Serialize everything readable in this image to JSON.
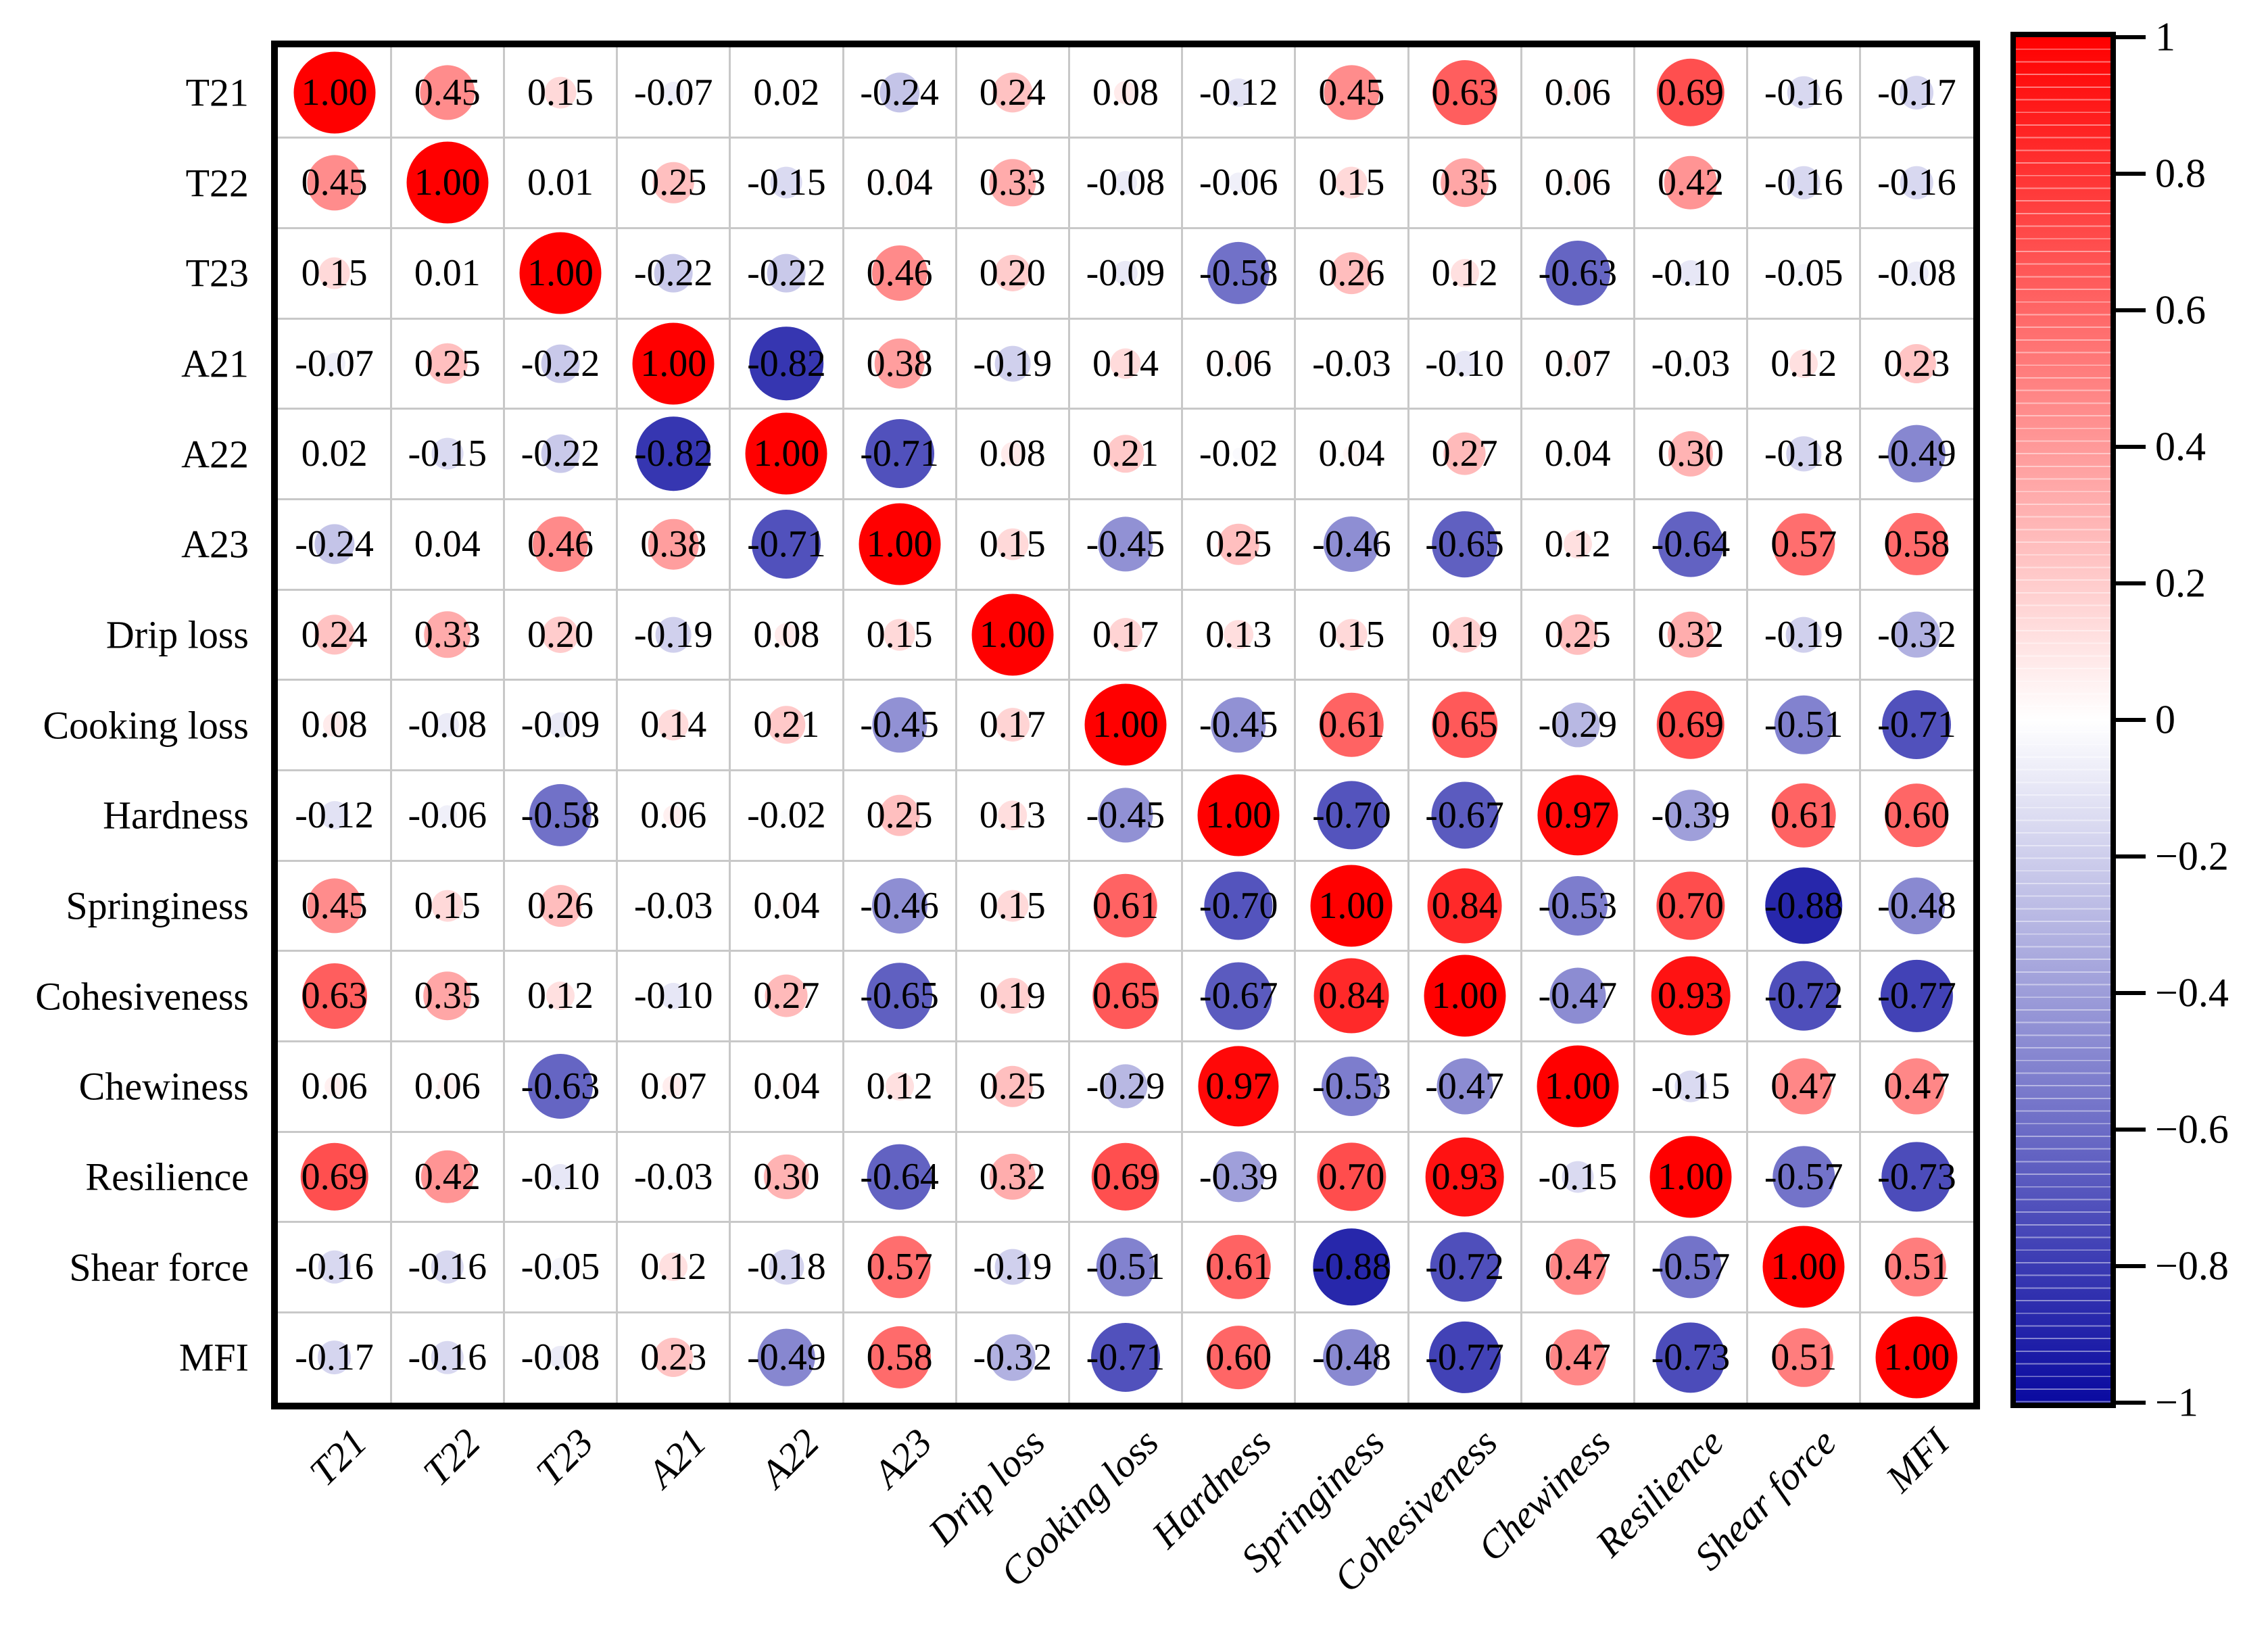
{
  "chart_data": {
    "type": "heatmap",
    "subtype": "correlation-bubble-matrix",
    "title": "",
    "variables": [
      "T21",
      "T22",
      "T23",
      "A21",
      "A22",
      "A23",
      "Drip loss",
      "Cooking loss",
      "Hardness",
      "Springiness",
      "Cohesiveness",
      "Chewiness",
      "Resilience",
      "Shear force",
      "MFI"
    ],
    "matrix": [
      [
        1.0,
        0.45,
        0.15,
        -0.07,
        0.02,
        -0.24,
        0.24,
        0.08,
        -0.12,
        0.45,
        0.63,
        0.06,
        0.69,
        -0.16,
        -0.17
      ],
      [
        0.45,
        1.0,
        0.01,
        0.25,
        -0.15,
        0.04,
        0.33,
        -0.08,
        -0.06,
        0.15,
        0.35,
        0.06,
        0.42,
        -0.16,
        -0.16
      ],
      [
        0.15,
        0.01,
        1.0,
        -0.22,
        -0.22,
        0.46,
        0.2,
        -0.09,
        -0.58,
        0.26,
        0.12,
        -0.63,
        -0.1,
        -0.05,
        -0.08
      ],
      [
        -0.07,
        0.25,
        -0.22,
        1.0,
        -0.82,
        0.38,
        -0.19,
        0.14,
        0.06,
        -0.03,
        -0.1,
        0.07,
        -0.03,
        0.12,
        0.23
      ],
      [
        0.02,
        -0.15,
        -0.22,
        -0.82,
        1.0,
        -0.71,
        0.08,
        0.21,
        -0.02,
        0.04,
        0.27,
        0.04,
        0.3,
        -0.18,
        -0.49
      ],
      [
        -0.24,
        0.04,
        0.46,
        0.38,
        -0.71,
        1.0,
        0.15,
        -0.45,
        0.25,
        -0.46,
        -0.65,
        0.12,
        -0.64,
        0.57,
        0.58
      ],
      [
        0.24,
        0.33,
        0.2,
        -0.19,
        0.08,
        0.15,
        1.0,
        0.17,
        0.13,
        0.15,
        0.19,
        0.25,
        0.32,
        -0.19,
        -0.32
      ],
      [
        0.08,
        -0.08,
        -0.09,
        0.14,
        0.21,
        -0.45,
        0.17,
        1.0,
        -0.45,
        0.61,
        0.65,
        -0.29,
        0.69,
        -0.51,
        -0.71
      ],
      [
        -0.12,
        -0.06,
        -0.58,
        0.06,
        -0.02,
        0.25,
        0.13,
        -0.45,
        1.0,
        -0.7,
        -0.67,
        0.97,
        -0.39,
        0.61,
        0.6
      ],
      [
        0.45,
        0.15,
        0.26,
        -0.03,
        0.04,
        -0.46,
        0.15,
        0.61,
        -0.7,
        1.0,
        0.84,
        -0.53,
        0.7,
        -0.88,
        -0.48
      ],
      [
        0.63,
        0.35,
        0.12,
        -0.1,
        0.27,
        -0.65,
        0.19,
        0.65,
        -0.67,
        0.84,
        1.0,
        -0.47,
        0.93,
        -0.72,
        -0.77
      ],
      [
        0.06,
        0.06,
        -0.63,
        0.07,
        0.04,
        0.12,
        0.25,
        -0.29,
        0.97,
        -0.53,
        -0.47,
        1.0,
        -0.15,
        0.47,
        0.47
      ],
      [
        0.69,
        0.42,
        -0.1,
        -0.03,
        0.3,
        -0.64,
        0.32,
        0.69,
        -0.39,
        0.7,
        0.93,
        -0.15,
        1.0,
        -0.57,
        -0.73
      ],
      [
        -0.16,
        -0.16,
        -0.05,
        0.12,
        -0.18,
        0.57,
        -0.19,
        -0.51,
        0.61,
        -0.88,
        -0.72,
        0.47,
        -0.57,
        1.0,
        0.51
      ],
      [
        -0.17,
        -0.16,
        -0.08,
        0.23,
        -0.49,
        0.58,
        -0.32,
        -0.71,
        0.6,
        -0.48,
        -0.77,
        0.47,
        -0.73,
        0.51,
        1.0
      ]
    ],
    "value_format": "0.00",
    "size_encoding": "circle diameter proportional to sqrt(|r|)",
    "colorbar": {
      "min": -1,
      "max": 1,
      "tick_values": [
        1,
        0.8,
        0.6,
        0.4,
        0.2,
        0,
        -0.2,
        -0.4,
        -0.6,
        -0.8,
        -1
      ],
      "tick_labels": [
        "1",
        "0.8",
        "0.6",
        "0.4",
        "0.2",
        "0",
        "−0.2",
        "−0.4",
        "−0.6",
        "−0.8",
        "−1"
      ],
      "position": "right"
    },
    "colors": {
      "positive_max": "#FF0000",
      "zero": "#FFFFFF",
      "negative_max": "#0A0AA0",
      "grid": "#C8C8C8",
      "frame": "#000000",
      "text": "#000000"
    },
    "grid": true,
    "legend_position": "right-colorbar"
  }
}
